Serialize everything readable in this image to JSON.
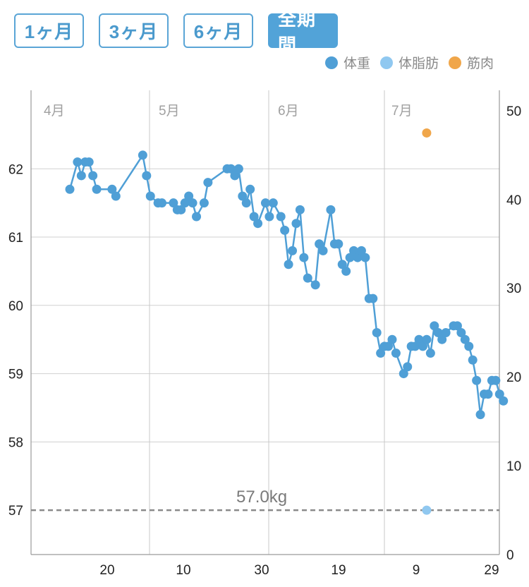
{
  "tabs": [
    {
      "label": "1ヶ月",
      "active": false
    },
    {
      "label": "3ヶ月",
      "active": false
    },
    {
      "label": "6ヶ月",
      "active": false
    },
    {
      "label": "全期間",
      "active": true
    }
  ],
  "legend": [
    {
      "label": "体重",
      "color": "#4f9fd6"
    },
    {
      "label": "体脂肪",
      "color": "#90c8f0"
    },
    {
      "label": "筋肉",
      "color": "#f0a64a"
    }
  ],
  "chart_data": {
    "type": "line",
    "x_ticks": [
      "20",
      "10",
      "30",
      "19",
      "9",
      "29"
    ],
    "month_labels": [
      "4月",
      "5月",
      "6月",
      "7月"
    ],
    "y_left": {
      "ticks": [
        "57",
        "58",
        "59",
        "60",
        "61",
        "62"
      ],
      "range": [
        56.35,
        63.15
      ]
    },
    "y_right": {
      "ticks": [
        "0",
        "10",
        "20",
        "30",
        "40",
        "50"
      ],
      "range": [
        0,
        51
      ]
    },
    "goal": {
      "value": 57.0,
      "label": "57.0kg"
    },
    "series": [
      {
        "name": "体重",
        "color": "#4f9fd6",
        "points": [
          {
            "day": 6,
            "value": 61.7
          },
          {
            "day": 8,
            "value": 62.1
          },
          {
            "day": 9,
            "value": 61.9
          },
          {
            "day": 10,
            "value": 62.1
          },
          {
            "day": 11,
            "value": 62.1
          },
          {
            "day": 12,
            "value": 61.9
          },
          {
            "day": 13,
            "value": 61.7
          },
          {
            "day": 17,
            "value": 61.7
          },
          {
            "day": 18,
            "value": 61.6
          },
          {
            "day": 25,
            "value": 62.2
          },
          {
            "day": 26,
            "value": 61.9
          },
          {
            "day": 27,
            "value": 61.6
          },
          {
            "day": 29,
            "value": 61.5
          },
          {
            "day": 30,
            "value": 61.5
          },
          {
            "day": 33,
            "value": 61.5
          },
          {
            "day": 34,
            "value": 61.4
          },
          {
            "day": 35,
            "value": 61.4
          },
          {
            "day": 36,
            "value": 61.5
          },
          {
            "day": 37,
            "value": 61.6
          },
          {
            "day": 38,
            "value": 61.5
          },
          {
            "day": 39,
            "value": 61.3
          },
          {
            "day": 41,
            "value": 61.5
          },
          {
            "day": 42,
            "value": 61.8
          },
          {
            "day": 47,
            "value": 62.0
          },
          {
            "day": 48,
            "value": 62.0
          },
          {
            "day": 49,
            "value": 61.9
          },
          {
            "day": 50,
            "value": 62.0
          },
          {
            "day": 51,
            "value": 61.6
          },
          {
            "day": 52,
            "value": 61.5
          },
          {
            "day": 53,
            "value": 61.7
          },
          {
            "day": 54,
            "value": 61.3
          },
          {
            "day": 55,
            "value": 61.2
          },
          {
            "day": 57,
            "value": 61.5
          },
          {
            "day": 58,
            "value": 61.3
          },
          {
            "day": 59,
            "value": 61.5
          },
          {
            "day": 61,
            "value": 61.3
          },
          {
            "day": 62,
            "value": 61.1
          },
          {
            "day": 63,
            "value": 60.6
          },
          {
            "day": 64,
            "value": 60.8
          },
          {
            "day": 65,
            "value": 61.2
          },
          {
            "day": 66,
            "value": 61.4
          },
          {
            "day": 67,
            "value": 60.7
          },
          {
            "day": 68,
            "value": 60.4
          },
          {
            "day": 70,
            "value": 60.3
          },
          {
            "day": 71,
            "value": 60.9
          },
          {
            "day": 72,
            "value": 60.8
          },
          {
            "day": 74,
            "value": 61.4
          },
          {
            "day": 75,
            "value": 60.9
          },
          {
            "day": 76,
            "value": 60.9
          },
          {
            "day": 77,
            "value": 60.6
          },
          {
            "day": 78,
            "value": 60.5
          },
          {
            "day": 79,
            "value": 60.7
          },
          {
            "day": 80,
            "value": 60.8
          },
          {
            "day": 81,
            "value": 60.7
          },
          {
            "day": 82,
            "value": 60.8
          },
          {
            "day": 83,
            "value": 60.7
          },
          {
            "day": 84,
            "value": 60.1
          },
          {
            "day": 85,
            "value": 60.1
          },
          {
            "day": 86,
            "value": 59.6
          },
          {
            "day": 87,
            "value": 59.3
          },
          {
            "day": 88,
            "value": 59.4
          },
          {
            "day": 89,
            "value": 59.4
          },
          {
            "day": 90,
            "value": 59.5
          },
          {
            "day": 91,
            "value": 59.3
          },
          {
            "day": 93,
            "value": 59.0
          },
          {
            "day": 94,
            "value": 59.1
          },
          {
            "day": 95,
            "value": 59.4
          },
          {
            "day": 96,
            "value": 59.4
          },
          {
            "day": 97,
            "value": 59.5
          },
          {
            "day": 98,
            "value": 59.4
          },
          {
            "day": 99,
            "value": 59.5
          },
          {
            "day": 100,
            "value": 59.3
          },
          {
            "day": 101,
            "value": 59.7
          },
          {
            "day": 102,
            "value": 59.6
          },
          {
            "day": 103,
            "value": 59.5
          },
          {
            "day": 104,
            "value": 59.6
          },
          {
            "day": 106,
            "value": 59.7
          },
          {
            "day": 107,
            "value": 59.7
          },
          {
            "day": 108,
            "value": 59.6
          },
          {
            "day": 109,
            "value": 59.5
          },
          {
            "day": 110,
            "value": 59.4
          },
          {
            "day": 111,
            "value": 59.2
          },
          {
            "day": 112,
            "value": 58.9
          },
          {
            "day": 113,
            "value": 58.4
          },
          {
            "day": 114,
            "value": 58.7
          },
          {
            "day": 115,
            "value": 58.7
          },
          {
            "day": 116,
            "value": 58.9
          },
          {
            "day": 117,
            "value": 58.9
          },
          {
            "day": 118,
            "value": 58.7
          },
          {
            "day": 119,
            "value": 58.6
          }
        ]
      },
      {
        "name": "体脂肪",
        "color": "#90c8f0",
        "points": [
          {
            "day": 99,
            "value_right": 5
          }
        ]
      },
      {
        "name": "筋肉",
        "color": "#f0a64a",
        "points": [
          {
            "day": 99,
            "value_right": 47.5
          }
        ]
      }
    ]
  }
}
